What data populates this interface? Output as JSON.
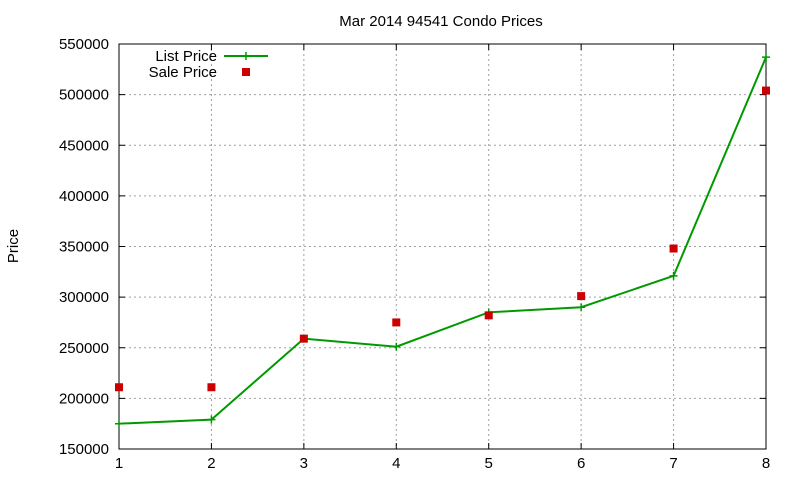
{
  "chart_data": {
    "type": "line",
    "title": "Mar 2014 94541 Condo Prices",
    "xlabel": "",
    "ylabel": "Price",
    "xlim": [
      1,
      8
    ],
    "ylim": [
      150000,
      550000
    ],
    "x_ticks": [
      "1",
      "2",
      "3",
      "4",
      "5",
      "6",
      "7",
      "8"
    ],
    "y_ticks": [
      "150000",
      "200000",
      "250000",
      "300000",
      "350000",
      "400000",
      "450000",
      "500000",
      "550000"
    ],
    "grid": true,
    "legend_position": "top-left",
    "x": [
      1,
      2,
      3,
      4,
      5,
      6,
      7,
      8
    ],
    "series": [
      {
        "name": "List Price",
        "style": "line+cross",
        "color": "#009900",
        "values": [
          175000,
          179000,
          259000,
          251000,
          285000,
          290000,
          321000,
          537000
        ]
      },
      {
        "name": "Sale Price",
        "style": "square-points",
        "color": "#cc0000",
        "values": [
          211000,
          211000,
          259000,
          275000,
          282000,
          301000,
          348000,
          504000
        ]
      }
    ]
  }
}
